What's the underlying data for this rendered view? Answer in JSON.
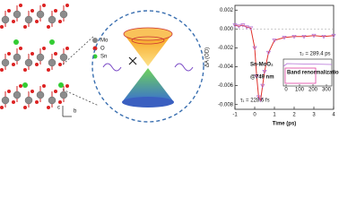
{
  "structure_legend": [
    "Mo",
    "O",
    "Sn"
  ],
  "structure_axes": [
    "c",
    "b"
  ],
  "chart_data": [
    {
      "type": "scatter",
      "x_label": "Time (ps)",
      "y_label": "ΔA (OD)",
      "series": [
        {
          "color": "#b36fd6",
          "x": [
            -1,
            -0.8,
            -0.6,
            -0.4,
            -0.2,
            0,
            0.1,
            0.2,
            0.3,
            0.4,
            0.5,
            0.7,
            1.0,
            1.5,
            2,
            2.5,
            3,
            3.5,
            4
          ],
          "values": [
            0.0004,
            0.0003,
            0.0004,
            0.0002,
            0.0001,
            -0.002,
            -0.005,
            -0.0072,
            -0.0075,
            -0.006,
            -0.0045,
            -0.0025,
            -0.0012,
            -0.0009,
            -0.0008,
            -0.0008,
            -0.0007,
            -0.0008,
            -0.0007
          ]
        }
      ],
      "fit_color": "#e0302a",
      "xlim": [
        -1,
        4
      ],
      "xticks": [
        -1,
        0,
        1,
        2,
        3,
        4
      ],
      "ylim": [
        -0.0085,
        0.0025
      ],
      "yticks": [
        0.002,
        {
          "value": 0,
          "label": "0.000"
        },
        -0.002,
        -0.004,
        -0.006,
        -0.008
      ],
      "annotations": [
        "Sn-MoO₂",
        "@749 nm",
        "τ₁ = 228.6 fs"
      ]
    },
    {
      "type": "inset",
      "xlim": [
        -20,
        340
      ],
      "xticks": [
        0,
        100,
        200,
        300
      ],
      "annotations": [
        "τ₂ = 289.4 ps",
        "Band renormalization"
      ]
    }
  ]
}
